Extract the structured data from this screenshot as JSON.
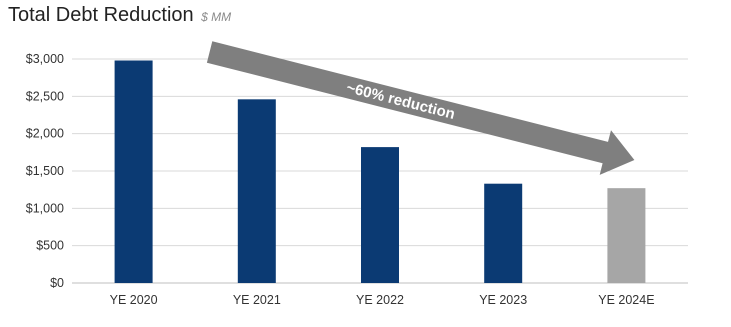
{
  "chart_data": {
    "type": "bar",
    "title": "Total Debt Reduction",
    "subtitle": "$ MM",
    "categories": [
      "YE 2020",
      "YE 2021",
      "YE 2022",
      "YE 2023",
      "YE 2024E"
    ],
    "values": [
      2980,
      2460,
      1820,
      1330,
      1270
    ],
    "bar_colors": [
      "#0b3a73",
      "#0b3a73",
      "#0b3a73",
      "#0b3a73",
      "#a6a6a6"
    ],
    "ylim": [
      0,
      3000
    ],
    "yticks": [
      0,
      500,
      1000,
      1500,
      2000,
      2500,
      3000
    ],
    "ytick_labels": [
      "$0",
      "$500",
      "$1,000",
      "$1,500",
      "$2,000",
      "$2,500",
      "$3,000"
    ],
    "grid": true,
    "annotation": {
      "text": "~60% reduction",
      "color": "#7f7f7f"
    }
  }
}
